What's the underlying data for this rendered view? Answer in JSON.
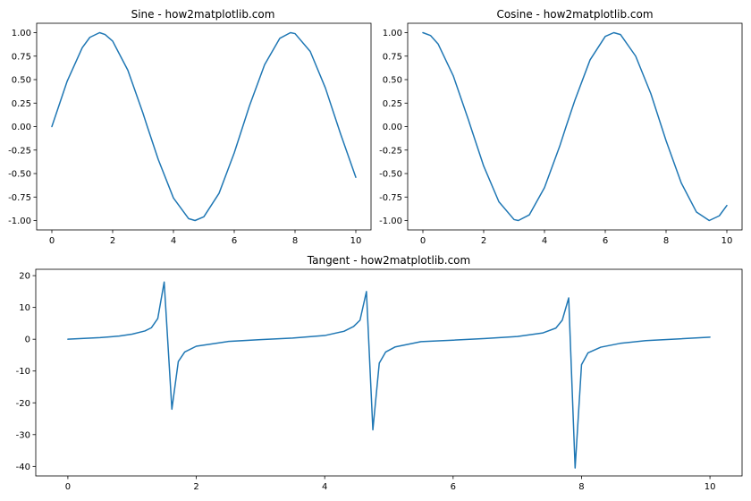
{
  "chart_data": [
    {
      "type": "line",
      "title": "Sine - how2matplotlib.com",
      "xlabel": "",
      "ylabel": "",
      "xlim": [
        -0.5,
        10.5
      ],
      "ylim": [
        -1.1,
        1.1
      ],
      "xticks": [
        0,
        2,
        4,
        6,
        8,
        10
      ],
      "xtick_labels": [
        "0",
        "2",
        "4",
        "6",
        "8",
        "10"
      ],
      "yticks": [
        1.0,
        0.75,
        0.5,
        0.25,
        0.0,
        -0.25,
        -0.5,
        -0.75,
        -1.0
      ],
      "ytick_labels": [
        "1.00",
        "0.75",
        "0.50",
        "0.25",
        "0.00",
        "-0.25",
        "-0.50",
        "-0.75",
        "-1.00"
      ],
      "grid": false,
      "color": "#1f77b4",
      "series": [
        {
          "x": [
            0.0,
            0.5,
            1.0,
            1.25,
            1.57,
            1.75,
            2.0,
            2.5,
            3.0,
            3.14,
            3.5,
            4.0,
            4.5,
            4.71,
            5.0,
            5.5,
            6.0,
            6.28,
            6.5,
            7.0,
            7.5,
            7.85,
            8.0,
            8.5,
            9.0,
            9.5,
            10.0
          ],
          "y": [
            0.0,
            0.48,
            0.84,
            0.95,
            1.0,
            0.98,
            0.91,
            0.6,
            0.14,
            0.0,
            -0.35,
            -0.76,
            -0.98,
            -1.0,
            -0.96,
            -0.71,
            -0.28,
            0.0,
            0.22,
            0.66,
            0.94,
            1.0,
            0.99,
            0.8,
            0.41,
            -0.08,
            -0.54
          ]
        }
      ]
    },
    {
      "type": "line",
      "title": "Cosine - how2matplotlib.com",
      "xlabel": "",
      "ylabel": "",
      "xlim": [
        -0.5,
        10.5
      ],
      "ylim": [
        -1.1,
        1.1
      ],
      "xticks": [
        0,
        2,
        4,
        6,
        8,
        10
      ],
      "xtick_labels": [
        "0",
        "2",
        "4",
        "6",
        "8",
        "10"
      ],
      "yticks": [
        1.0,
        0.75,
        0.5,
        0.25,
        0.0,
        -0.25,
        -0.5,
        -0.75,
        -1.0
      ],
      "ytick_labels": [
        "1.00",
        "0.75",
        "0.50",
        "0.25",
        "0.00",
        "-0.25",
        "-0.50",
        "-0.75",
        "-1.00"
      ],
      "grid": false,
      "color": "#1f77b4",
      "series": [
        {
          "x": [
            0.0,
            0.25,
            0.5,
            1.0,
            1.5,
            1.57,
            2.0,
            2.5,
            3.0,
            3.14,
            3.5,
            4.0,
            4.5,
            4.71,
            5.0,
            5.5,
            6.0,
            6.28,
            6.5,
            7.0,
            7.5,
            7.85,
            8.0,
            8.5,
            9.0,
            9.42,
            9.75,
            10.0
          ],
          "y": [
            1.0,
            0.97,
            0.88,
            0.54,
            0.07,
            0.0,
            -0.42,
            -0.8,
            -0.99,
            -1.0,
            -0.94,
            -0.65,
            -0.21,
            0.0,
            0.28,
            0.71,
            0.96,
            1.0,
            0.98,
            0.75,
            0.35,
            0.0,
            -0.15,
            -0.6,
            -0.91,
            -1.0,
            -0.95,
            -0.84
          ]
        }
      ]
    },
    {
      "type": "line",
      "title": "Tangent - how2matplotlib.com",
      "xlabel": "",
      "ylabel": "",
      "xlim": [
        -0.5,
        10.5
      ],
      "ylim": [
        -43,
        22
      ],
      "xticks": [
        0,
        2,
        4,
        6,
        8,
        10
      ],
      "xtick_labels": [
        "0",
        "2",
        "4",
        "6",
        "8",
        "10"
      ],
      "yticks": [
        20,
        10,
        0,
        -10,
        -20,
        -30,
        -40
      ],
      "ytick_labels": [
        "20",
        "10",
        "0",
        "-10",
        "-20",
        "-30",
        "-40"
      ],
      "grid": false,
      "color": "#1f77b4",
      "series": [
        {
          "x": [
            0.0,
            0.5,
            0.8,
            1.0,
            1.2,
            1.3,
            1.4,
            1.5,
            1.62,
            1.72,
            1.82,
            2.0,
            2.5,
            3.0,
            3.5,
            4.0,
            4.3,
            4.45,
            4.55,
            4.65,
            4.75,
            4.85,
            4.95,
            5.1,
            5.5,
            6.0,
            6.5,
            7.0,
            7.4,
            7.6,
            7.7,
            7.8,
            7.9,
            8.0,
            8.1,
            8.3,
            8.6,
            9.0,
            9.5,
            10.0
          ],
          "y": [
            0.0,
            0.5,
            1.0,
            1.6,
            2.6,
            3.6,
            6.5,
            18.0,
            -22.0,
            -7.0,
            -4.0,
            -2.2,
            -0.7,
            -0.14,
            0.37,
            1.16,
            2.5,
            4.0,
            6.0,
            15.0,
            -28.5,
            -7.5,
            -4.0,
            -2.4,
            -0.75,
            -0.29,
            0.22,
            0.87,
            2.0,
            3.5,
            6.0,
            13.0,
            -40.5,
            -8.0,
            -4.3,
            -2.5,
            -1.3,
            -0.45,
            0.08,
            0.65
          ]
        }
      ]
    }
  ]
}
